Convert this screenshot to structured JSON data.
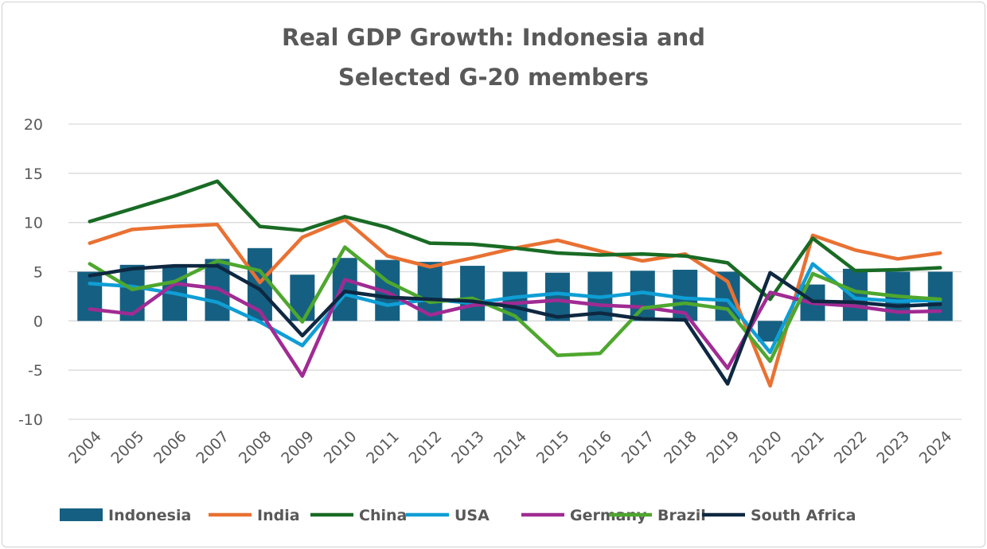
{
  "chart_data": {
    "type": "bar+line",
    "title": [
      "Real GDP Growth: Indonesia and",
      "Selected G-20 members"
    ],
    "xlabel": "",
    "ylabel": "",
    "ylim": [
      -10,
      20
    ],
    "yticks": [
      -10,
      -5,
      0,
      5,
      10,
      15,
      20
    ],
    "grid": true,
    "legend": "bottom",
    "categories": [
      "2004",
      "2005",
      "2006",
      "2007",
      "2008",
      "2009",
      "2010",
      "2011",
      "2012",
      "2013",
      "2014",
      "2015",
      "2016",
      "2017",
      "2018",
      "2019",
      "2020",
      "2021",
      "2022",
      "2023",
      "2024"
    ],
    "bar_series": {
      "name": "Indonesia",
      "color": "#156082",
      "values": [
        5.0,
        5.7,
        5.5,
        6.3,
        7.4,
        4.7,
        6.4,
        6.2,
        6.0,
        5.6,
        5.0,
        4.9,
        5.0,
        5.1,
        5.2,
        5.0,
        -2.1,
        3.7,
        5.3,
        5.0,
        5.0
      ]
    },
    "series": [
      {
        "name": "India",
        "color": "#e97132",
        "values": [
          7.9,
          9.3,
          9.6,
          9.8,
          3.9,
          8.5,
          10.3,
          6.6,
          5.5,
          6.4,
          7.4,
          8.2,
          7.1,
          6.1,
          6.8,
          4.0,
          -6.6,
          8.7,
          7.2,
          6.3,
          6.9
        ]
      },
      {
        "name": "China",
        "color": "#196b24",
        "values": [
          10.1,
          11.4,
          12.7,
          14.2,
          9.6,
          9.2,
          10.6,
          9.5,
          7.9,
          7.8,
          7.4,
          6.9,
          6.7,
          6.8,
          6.6,
          5.9,
          2.2,
          8.4,
          5.1,
          5.2,
          5.4
        ]
      },
      {
        "name": "USA",
        "color": "#0f9ed5",
        "values": [
          3.8,
          3.5,
          2.8,
          1.9,
          -0.1,
          -2.5,
          2.7,
          1.6,
          2.2,
          1.8,
          2.4,
          2.8,
          2.4,
          2.9,
          2.3,
          2.1,
          -3.2,
          5.8,
          2.3,
          2.0,
          2.1
        ]
      },
      {
        "name": "Germany",
        "color": "#a02b93",
        "values": [
          1.2,
          0.7,
          3.8,
          3.3,
          1.0,
          -5.6,
          4.2,
          2.9,
          0.6,
          1.6,
          1.8,
          2.1,
          1.6,
          1.4,
          0.8,
          -4.8,
          2.9,
          1.8,
          1.5,
          0.9,
          1.0
        ]
      },
      {
        "name": "Brazil",
        "color": "#4ea72e",
        "values": [
          5.8,
          3.2,
          4.0,
          6.1,
          5.1,
          -0.1,
          7.5,
          4.0,
          1.9,
          2.3,
          0.5,
          -3.5,
          -3.3,
          1.3,
          1.8,
          1.2,
          -4.1,
          4.8,
          3.0,
          2.5,
          2.2
        ]
      },
      {
        "name": "South Africa",
        "color": "#0e2841",
        "values": [
          4.6,
          5.3,
          5.6,
          5.6,
          3.2,
          -1.5,
          3.0,
          2.4,
          2.2,
          2.0,
          1.4,
          0.4,
          0.8,
          0.2,
          0.1,
          -6.4,
          4.9,
          2.0,
          1.9,
          1.5,
          1.7
        ]
      }
    ]
  }
}
